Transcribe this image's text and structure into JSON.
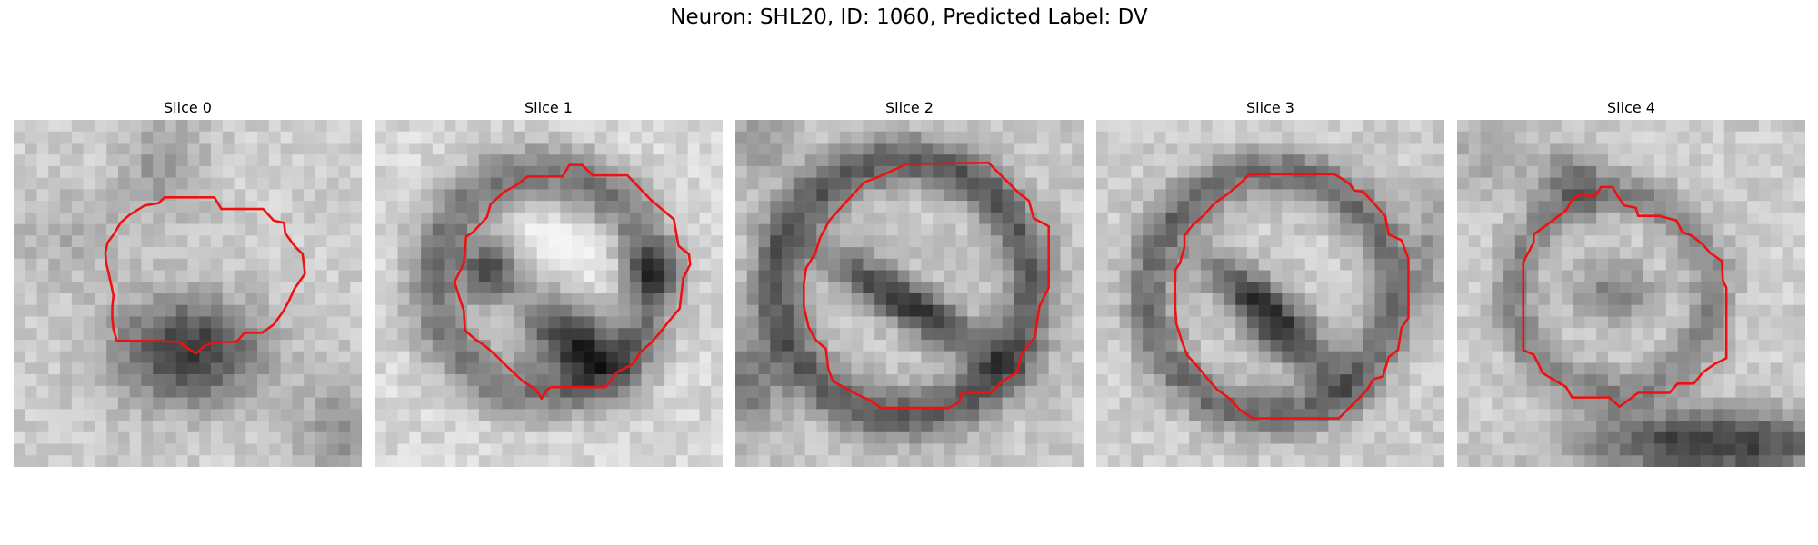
{
  "figure": {
    "title": "Neuron: SHL20, ID: 1060, Predicted Label: DV"
  },
  "panels": [
    {
      "title": "Slice 0"
    },
    {
      "title": "Slice 1"
    },
    {
      "title": "Slice 2"
    },
    {
      "title": "Slice 3"
    },
    {
      "title": "Slice 4"
    }
  ],
  "colors": {
    "contour": "#ee1111"
  }
}
